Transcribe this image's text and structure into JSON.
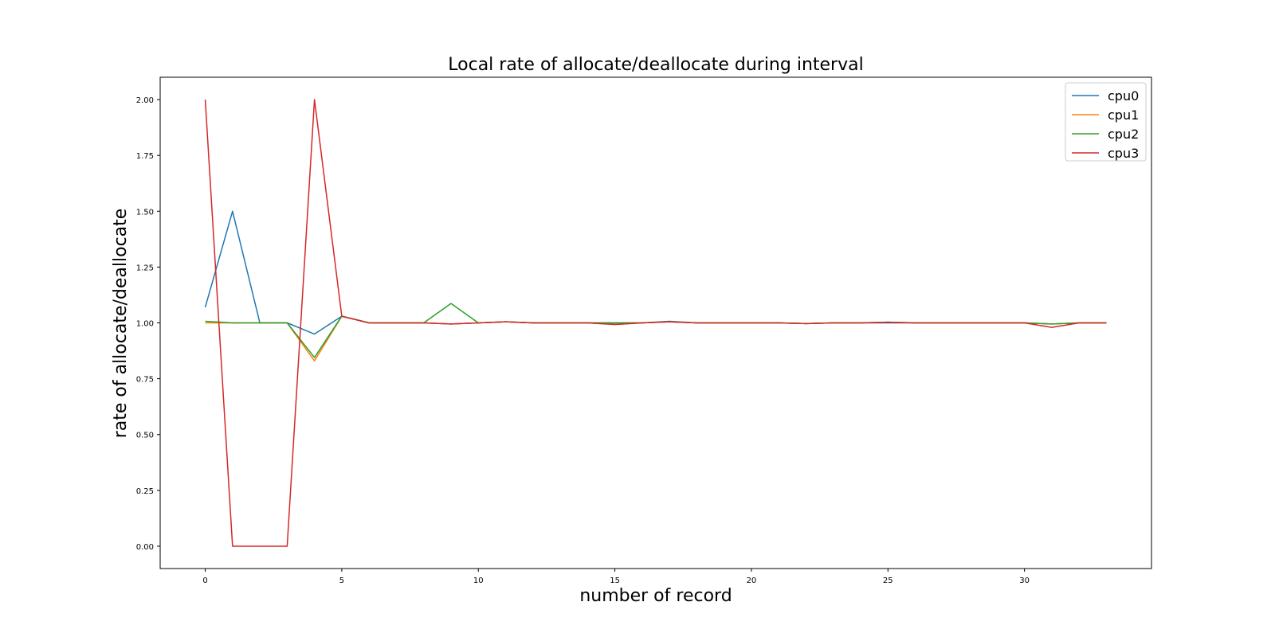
{
  "chart_data": {
    "type": "line",
    "title": "Local rate of allocate/deallocate during interval",
    "xlabel": "number of record",
    "ylabel": "rate of allocate/deallocate",
    "xlim": [
      -1.65,
      34.65
    ],
    "ylim": [
      -0.1,
      2.1
    ],
    "xticks": [
      0,
      5,
      10,
      15,
      20,
      25,
      30
    ],
    "yticks": [
      0.0,
      0.25,
      0.5,
      0.75,
      1.0,
      1.25,
      1.5,
      1.75,
      2.0
    ],
    "ytick_labels": [
      "0.00",
      "0.25",
      "0.50",
      "0.75",
      "1.00",
      "1.25",
      "1.50",
      "1.75",
      "2.00"
    ],
    "grid": false,
    "legend_position": "top-right",
    "x": [
      0,
      1,
      2,
      3,
      4,
      5,
      6,
      7,
      8,
      9,
      10,
      11,
      12,
      13,
      14,
      15,
      16,
      17,
      18,
      19,
      20,
      21,
      22,
      23,
      24,
      25,
      26,
      27,
      28,
      29,
      30,
      31,
      32,
      33
    ],
    "series": [
      {
        "name": "cpu0",
        "color": "#1f77b4",
        "values": [
          1.07,
          1.5,
          1.0,
          1.0,
          0.95,
          1.03,
          1.0,
          1.0,
          1.0,
          0.995,
          1.0,
          1.005,
          1.0,
          1.0,
          1.0,
          1.0,
          1.0,
          1.007,
          1.0,
          1.0,
          1.0,
          1.0,
          0.997,
          1.0,
          1.0,
          1.0,
          1.0,
          1.0,
          1.0,
          1.0,
          1.0,
          0.995,
          1.0,
          1.0
        ]
      },
      {
        "name": "cpu1",
        "color": "#ff7f0e",
        "values": [
          1.0,
          1.0,
          1.0,
          1.0,
          0.83,
          1.03,
          1.0,
          1.0,
          1.0,
          0.995,
          1.0,
          1.005,
          1.0,
          1.0,
          1.0,
          0.993,
          1.0,
          1.005,
          1.0,
          1.0,
          1.0,
          1.0,
          0.997,
          1.0,
          1.0,
          1.003,
          1.0,
          1.0,
          1.0,
          1.0,
          1.0,
          0.995,
          1.0,
          1.0
        ]
      },
      {
        "name": "cpu2",
        "color": "#2ca02c",
        "values": [
          1.007,
          1.0,
          1.0,
          1.0,
          0.845,
          1.03,
          1.0,
          1.0,
          1.0,
          1.087,
          1.0,
          1.005,
          1.0,
          1.0,
          1.0,
          1.0,
          1.0,
          1.005,
          1.0,
          1.0,
          1.0,
          1.0,
          0.997,
          1.0,
          1.0,
          1.003,
          1.0,
          1.0,
          1.0,
          1.0,
          1.0,
          0.995,
          1.0,
          1.0
        ]
      },
      {
        "name": "cpu3",
        "color": "#d62728",
        "values": [
          2.0,
          0.0,
          0.0,
          0.0,
          2.0,
          1.03,
          1.0,
          1.0,
          1.0,
          0.995,
          1.0,
          1.005,
          1.0,
          1.0,
          1.0,
          0.993,
          1.0,
          1.005,
          1.0,
          1.0,
          1.0,
          1.0,
          0.997,
          1.0,
          1.0,
          1.003,
          1.0,
          1.0,
          1.0,
          1.0,
          1.0,
          0.98,
          1.0,
          1.0
        ]
      }
    ]
  }
}
